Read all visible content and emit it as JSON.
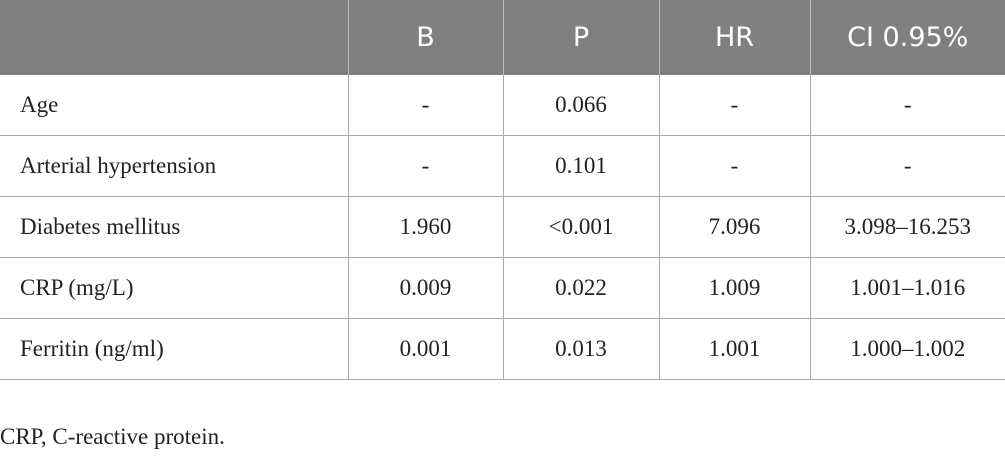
{
  "table": {
    "headers": [
      "B",
      "P",
      "HR",
      "CI 0.95%"
    ],
    "rows": [
      [
        "Age",
        "-",
        "0.066",
        "-",
        "-"
      ],
      [
        "Arterial hypertension",
        "-",
        "0.101",
        "-",
        "-"
      ],
      [
        "Diabetes mellitus",
        "1.960",
        "<0.001",
        "7.096",
        "3.098–16.253"
      ],
      [
        "CRP (mg/L)",
        "0.009",
        "0.022",
        "1.009",
        "1.001–1.016"
      ],
      [
        "Ferritin (ng/ml)",
        "0.001",
        "0.013",
        "1.001",
        "1.000–1.002"
      ]
    ]
  },
  "footnote": "CRP, C-reactive protein."
}
